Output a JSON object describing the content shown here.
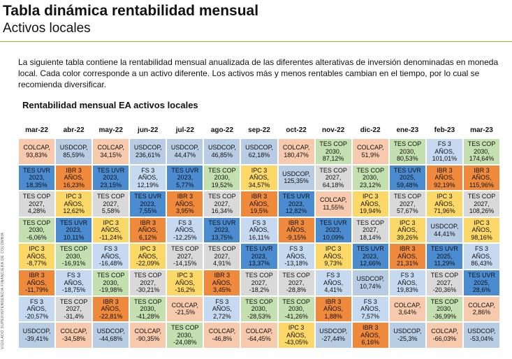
{
  "title": "Tabla dinámica rentabilidad mensual",
  "subtitle": "Activos locales",
  "description": "La siguiente tabla contiene la rentabilidad mensual anualizada de las diferentes alterativas de inversión denominadas en moneda local. Cada color corresponde a un activo diferente. Los activos más y menos rentables cambian en el tiempo, por lo cual se recomienda diversificar.",
  "table_title": "Rentabilidad mensual EA activos locales",
  "side_label": "VIGILADO SUPERINTENDENCIA FINANCIERA DE COLOMBIA",
  "asset_colors": {
    "COLCAP": "#f7c9ad",
    "USDCOP": "#b8cce4",
    "TES UVR": "#4b8bd0",
    "TES COP": "#c4dfb0",
    "IPC 3": "#fcd868",
    "IBR 3": "#ef8a3c",
    "FS 3": "#c5d9f1",
    "TES COP2": "#d9d9d9"
  },
  "months": [
    "mar-22",
    "abr-22",
    "may-22",
    "jun-22",
    "jul-22",
    "ago-22",
    "sep-22",
    "oct-22",
    "nov-22",
    "dic-22",
    "ene-23",
    "feb-23",
    "mar-23"
  ],
  "rows": [
    [
      {
        "text": "COLCAP,\n93,83%",
        "color": "#f7c9ad"
      },
      {
        "text": "USDCOP,\n85,59%",
        "color": "#b8cce4"
      },
      {
        "text": "COLCAP,\n34,15%",
        "color": "#f7c9ad"
      },
      {
        "text": "USDCOP,\n236,61%",
        "color": "#b8cce4"
      },
      {
        "text": "USDCOP,\n44,47%",
        "color": "#b8cce4"
      },
      {
        "text": "USDCOP,\n46,85%",
        "color": "#b8cce4"
      },
      {
        "text": "USDCOP,\n62,18%",
        "color": "#b8cce4"
      },
      {
        "text": "COLCAP,\n180,47%",
        "color": "#f7c9ad"
      },
      {
        "text": "TES COP\n2030,\n87,12%",
        "color": "#c4dfb0"
      },
      {
        "text": "COLCAP,\n51,9%",
        "color": "#f7c9ad"
      },
      {
        "text": "TES COP\n2030,\n80,53%",
        "color": "#c4dfb0"
      },
      {
        "text": "FS 3\nAÑOS,\n101,01%",
        "color": "#c5d9f1"
      },
      {
        "text": "TES COP\n2030,\n174,64%",
        "color": "#c4dfb0"
      }
    ],
    [
      {
        "text": "TES UVR\n2023,\n18,35%",
        "color": "#4b8bd0"
      },
      {
        "text": "IBR 3\nAÑOS,\n16,23%",
        "color": "#ef8a3c"
      },
      {
        "text": "TES UVR\n2023,\n23,15%",
        "color": "#4b8bd0"
      },
      {
        "text": "FS 3\nAÑOS,\n12,19%",
        "color": "#c5d9f1"
      },
      {
        "text": "TES UVR\n2023,\n5,77%",
        "color": "#4b8bd0"
      },
      {
        "text": "TES COP\n2030,\n19,52%",
        "color": "#c4dfb0"
      },
      {
        "text": "IPC 3\nAÑOS,\n34,57%",
        "color": "#fcd868"
      },
      {
        "text": "USDCOP,\n125,35%",
        "color": "#b8cce4"
      },
      {
        "text": "TES COP\n2027,\n64,18%",
        "color": "#d9d9d9"
      },
      {
        "text": "TES COP\n2030,\n23,12%",
        "color": "#c4dfb0"
      },
      {
        "text": "TES UVR\n2025,\n59,48%",
        "color": "#4b8bd0"
      },
      {
        "text": "IBR 3\nAÑOS,\n92,19%",
        "color": "#ef8a3c"
      },
      {
        "text": "IBR 3\nAÑOS,\n115,96%",
        "color": "#ef8a3c"
      }
    ],
    [
      {
        "text": "TES COP\n2027,\n4,28%",
        "color": "#d9d9d9"
      },
      {
        "text": "IPC 3\nAÑOS,\n12,62%",
        "color": "#fcd868"
      },
      {
        "text": "TES COP\n2027,\n5,58%",
        "color": "#d9d9d9"
      },
      {
        "text": "TES UVR\n2023,\n7,55%",
        "color": "#4b8bd0"
      },
      {
        "text": "IBR 3\nAÑOS,\n3,95%",
        "color": "#ef8a3c"
      },
      {
        "text": "TES COP\n2027,\n16,34%",
        "color": "#d9d9d9"
      },
      {
        "text": "IBR 3\nAÑOS,\n19,5%",
        "color": "#ef8a3c"
      },
      {
        "text": "TES UVR\n2023,\n12,82%",
        "color": "#4b8bd0"
      },
      {
        "text": "COLCAP,\n11,55%",
        "color": "#f7c9ad"
      },
      {
        "text": "IPC 3\nAÑOS,\n19,94%",
        "color": "#fcd868"
      },
      {
        "text": "TES COP\n2027,\n57,67%",
        "color": "#d9d9d9"
      },
      {
        "text": "IPC 3\nAÑOS,\n71,96%",
        "color": "#fcd868"
      },
      {
        "text": "TES COP\n2027,\n108,26%",
        "color": "#d9d9d9"
      }
    ],
    [
      {
        "text": "TES COP\n2030,\n-6,06%",
        "color": "#c4dfb0"
      },
      {
        "text": "TES UVR\n2023,\n10,11%",
        "color": "#4b8bd0"
      },
      {
        "text": "IPC 3\nAÑOS,\n-11,24%",
        "color": "#fcd868"
      },
      {
        "text": "IBR 3\nAÑOS,\n6,12%",
        "color": "#ef8a3c"
      },
      {
        "text": "FS 3\nAÑOS,\n-12,25%",
        "color": "#c5d9f1"
      },
      {
        "text": "TES UVR\n2023,\n13,75%",
        "color": "#4b8bd0"
      },
      {
        "text": "FS 3\nAÑOS,\n16,11%",
        "color": "#c5d9f1"
      },
      {
        "text": "IBR 3\nAÑOS,\n-9,15%",
        "color": "#ef8a3c"
      },
      {
        "text": "TES UVR\n2023,\n10,09%",
        "color": "#4b8bd0"
      },
      {
        "text": "TES COP\n2027,\n18,14%",
        "color": "#d9d9d9"
      },
      {
        "text": "IPC 3\nAÑOS,\n39,26%",
        "color": "#fcd868"
      },
      {
        "text": "USDCOP,\n44,41%",
        "color": "#b8cce4"
      },
      {
        "text": "IPC 3\nAÑOS,\n98,16%",
        "color": "#fcd868"
      }
    ],
    [
      {
        "text": "IPC 3\nAÑOS,\n-8,77%",
        "color": "#fcd868"
      },
      {
        "text": "TES COP\n2030,\n-16,91%",
        "color": "#c4dfb0"
      },
      {
        "text": "FS 3\nAÑOS,\n-16,48%",
        "color": "#c5d9f1"
      },
      {
        "text": "IPC 3\nAÑOS,\n-22,09%",
        "color": "#fcd868"
      },
      {
        "text": "TES COP\n2027,\n-14,15%",
        "color": "#d9d9d9"
      },
      {
        "text": "TES COP\n2027,\n4,91%",
        "color": "#d9d9d9"
      },
      {
        "text": "TES UVR\n2023,\n13,37%",
        "color": "#4b8bd0"
      },
      {
        "text": "FS 3\nAÑOS,\n-13,18%",
        "color": "#c5d9f1"
      },
      {
        "text": "IPC 3\nAÑOS,\n9,73%",
        "color": "#fcd868"
      },
      {
        "text": "TES UVR\n2023,\n12,66%",
        "color": "#4b8bd0"
      },
      {
        "text": "IBR 3\nAÑOS,\n21,31%",
        "color": "#ef8a3c"
      },
      {
        "text": "TES UVR\n2025,\n11,29%",
        "color": "#4b8bd0"
      },
      {
        "text": "FS 3\nAÑOS,\n86,43%",
        "color": "#c5d9f1"
      }
    ],
    [
      {
        "text": "IBR 3\nAÑOS,\n-11,79%",
        "color": "#ef8a3c"
      },
      {
        "text": "FS 3\nAÑOS,\n-18,75%",
        "color": "#c5d9f1"
      },
      {
        "text": "TES COP\n2030,\n-19,98%",
        "color": "#c4dfb0"
      },
      {
        "text": "TES COP\n2027,\n-30,21%",
        "color": "#d9d9d9"
      },
      {
        "text": "IPC 3\nAÑOS,\n-16,2%",
        "color": "#fcd868"
      },
      {
        "text": "IBR 3\nAÑOS,\n3,45%",
        "color": "#ef8a3c"
      },
      {
        "text": "TES COP\n2027,\n-18,2%",
        "color": "#d9d9d9"
      },
      {
        "text": "TES COP\n2027,\n-28,8%",
        "color": "#d9d9d9"
      },
      {
        "text": "FS 3\nAÑOS,\n4,41%",
        "color": "#c5d9f1"
      },
      {
        "text": "USDCOP,\n10,74%",
        "color": "#b8cce4"
      },
      {
        "text": "FS 3\nAÑOS,\n19,83%",
        "color": "#c5d9f1"
      },
      {
        "text": "TES COP\n2027,\n-20,36%",
        "color": "#d9d9d9"
      },
      {
        "text": "TES UVR\n2025,\n28,6%",
        "color": "#4b8bd0"
      }
    ],
    [
      {
        "text": "FS 3\nAÑOS,\n-20,57%",
        "color": "#c5d9f1"
      },
      {
        "text": "TES COP\n2027,\n-31,4%",
        "color": "#d9d9d9"
      },
      {
        "text": "IBR 3\nAÑOS,\n-22,81%",
        "color": "#ef8a3c"
      },
      {
        "text": "TES COP\n2030,\n-41,28%",
        "color": "#c4dfb0"
      },
      {
        "text": "COLCAP,\n-21,5%",
        "color": "#f7c9ad"
      },
      {
        "text": "FS 3\nAÑOS,\n2,72%",
        "color": "#c5d9f1"
      },
      {
        "text": "TES COP\n2030,\n-28,53%",
        "color": "#c4dfb0"
      },
      {
        "text": "TES COP\n2030,\n-41,26%",
        "color": "#c4dfb0"
      },
      {
        "text": "IBR 3\nAÑOS,\n1,88%",
        "color": "#ef8a3c"
      },
      {
        "text": "FS 3\nAÑOS,\n7,57%",
        "color": "#c5d9f1"
      },
      {
        "text": "COLCAP,\n3,64%",
        "color": "#f7c9ad"
      },
      {
        "text": "TES COP\n2030,\n-36,99%",
        "color": "#c4dfb0"
      },
      {
        "text": "COLCAP,\n2,86%",
        "color": "#f7c9ad"
      }
    ],
    [
      {
        "text": "USDCOP,\n-39,41%",
        "color": "#b8cce4"
      },
      {
        "text": "COLCAP,\n-34,58%",
        "color": "#f7c9ad"
      },
      {
        "text": "USDCOP,\n-44,68%",
        "color": "#b8cce4"
      },
      {
        "text": "COLCAP,\n-90,35%",
        "color": "#f7c9ad"
      },
      {
        "text": "TES COP\n2030,\n-24,08%",
        "color": "#c4dfb0"
      },
      {
        "text": "COLCAP,\n-46,8%",
        "color": "#f7c9ad"
      },
      {
        "text": "COLCAP,\n-64,45%",
        "color": "#f7c9ad"
      },
      {
        "text": "IPC 3\nAÑOS,\n-43,05%",
        "color": "#fcd868"
      },
      {
        "text": "USDCOP,\n-27,44%",
        "color": "#b8cce4"
      },
      {
        "text": "IBR 3\nAÑOS,\n6,16%",
        "color": "#ef8a3c"
      },
      {
        "text": "USDCOP,\n-25,3%",
        "color": "#b8cce4"
      },
      {
        "text": "COLCAP,\n-66,03%",
        "color": "#f7c9ad"
      },
      {
        "text": "USDCOP,\n-53,04%",
        "color": "#b8cce4"
      }
    ]
  ]
}
